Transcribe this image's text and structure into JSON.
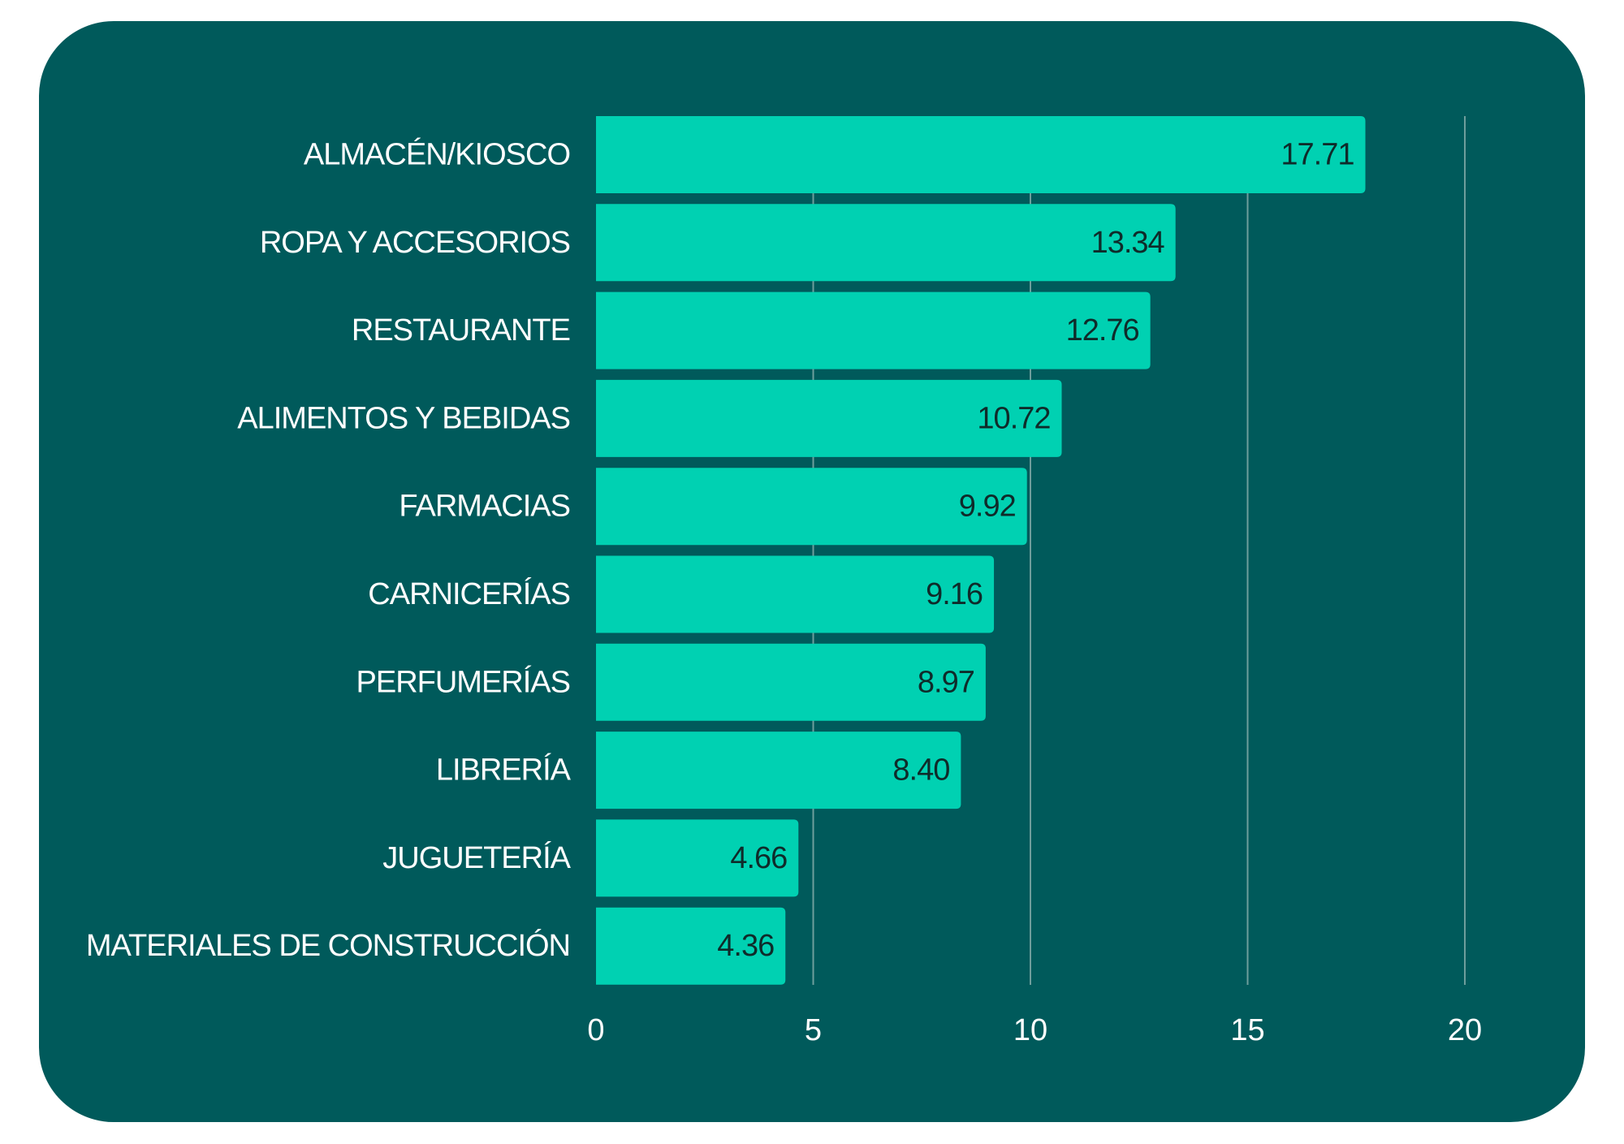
{
  "colors": {
    "card_background": "#005A5B",
    "bar": "#00D1B2",
    "gridline": "#6E9E9C",
    "category_text": "#FFFFFF",
    "value_text": "#0F2B2A",
    "tick_text": "#FFFFFF"
  },
  "chart_data": {
    "type": "bar",
    "orientation": "horizontal",
    "categories": [
      "ALMACÉN/KIOSCO",
      "ROPA Y ACCESORIOS",
      "RESTAURANTE",
      "ALIMENTOS Y BEBIDAS",
      "FARMACIAS",
      "CARNICERÍAS",
      "PERFUMERÍAS",
      "LIBRERÍA",
      "JUGUETERÍA",
      "MATERIALES DE CONSTRUCCIÓN"
    ],
    "values": [
      17.71,
      13.34,
      12.76,
      10.72,
      9.92,
      9.16,
      8.97,
      8.4,
      4.66,
      4.36
    ],
    "value_labels": [
      "17.71",
      "13.34",
      "12.76",
      "10.72",
      "9.92",
      "9.16",
      "8.97",
      "8.40",
      "4.66",
      "4.36"
    ],
    "xlim": [
      0,
      20
    ],
    "x_ticks": [
      0,
      5,
      10,
      15,
      20
    ],
    "x_tick_labels": [
      "0",
      "5",
      "10",
      "15",
      "20"
    ],
    "title": "",
    "xlabel": "",
    "ylabel": "",
    "grid": "vertical",
    "legend": "none"
  }
}
